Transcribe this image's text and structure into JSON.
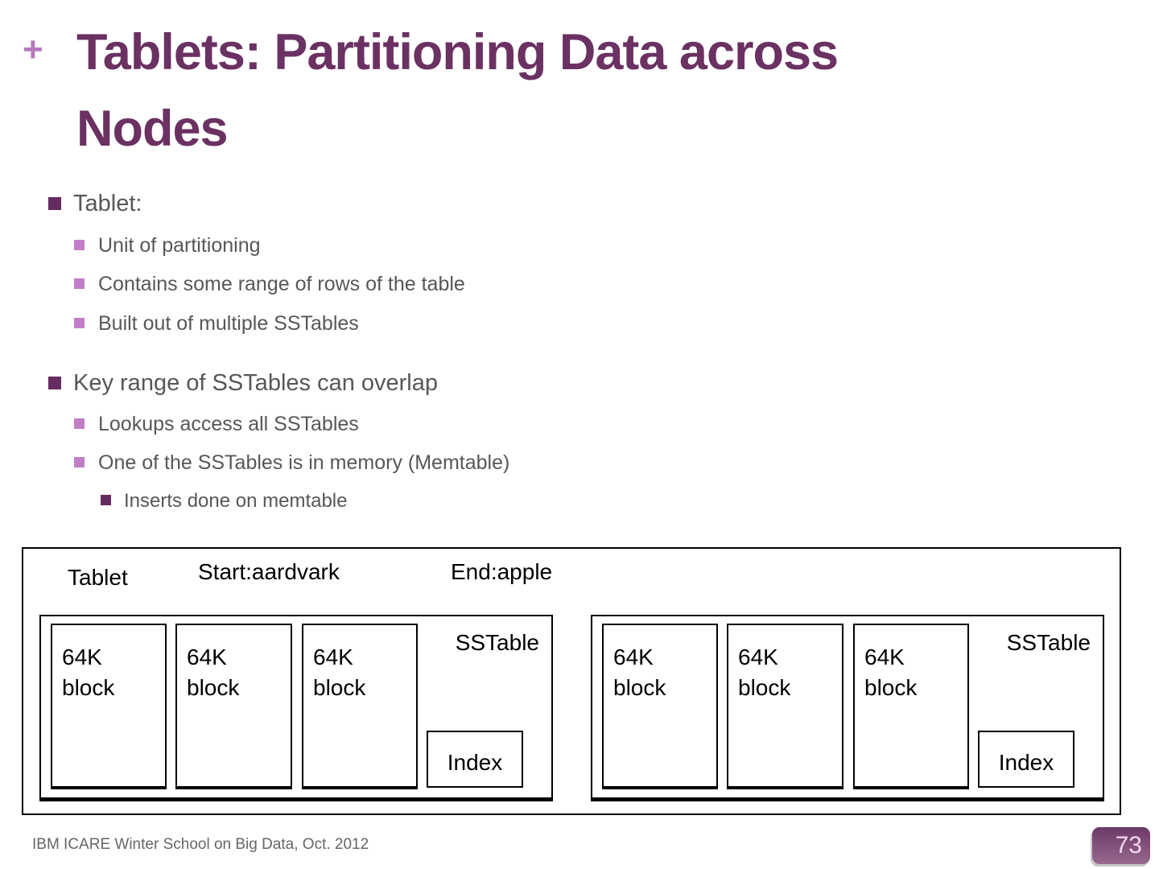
{
  "slide": {
    "title_lines": [
      "Tablets: Partitioning Data across",
      "Nodes"
    ],
    "title_marker": "+",
    "footer": "IBM ICARE Winter School on Big Data, Oct. 2012",
    "page_number": "73"
  },
  "colors": {
    "title_text": "#6A3162",
    "title_marker": "#B878BE",
    "bullet_level1": "#662C61",
    "bullet_level2": "#C17EC6",
    "body_text": "#575757",
    "footer_text": "#666666",
    "badge_gradient_top": "#6D3867",
    "badge_gradient_bottom": "#99698F",
    "badge_text": "#F2D7EE",
    "diagram_line": "#000000"
  },
  "bullets": [
    {
      "level": 1,
      "text": "Tablet:"
    },
    {
      "level": 2,
      "text": "Unit of partitioning"
    },
    {
      "level": 2,
      "text": "Contains some range of rows of the table"
    },
    {
      "level": 2,
      "text": "Built out of multiple SSTables"
    },
    {
      "level": 1,
      "text": "Key range of SSTables can overlap"
    },
    {
      "level": 2,
      "text": "Lookups access all SSTables"
    },
    {
      "level": 2,
      "text": "One of the SSTables is in memory (Memtable)"
    },
    {
      "level": 3,
      "text": "Inserts done on memtable"
    }
  ],
  "diagram": {
    "tablet_label": "Tablet",
    "start_key": "Start:aardvark",
    "end_key": "End:apple",
    "sstables": [
      {
        "label": "SSTable",
        "index_label": "Index",
        "blocks": [
          "64K block",
          "64K block",
          "64K block"
        ]
      },
      {
        "label": "SSTable",
        "index_label": "Index",
        "blocks": [
          "64K block",
          "64K block",
          "64K block"
        ]
      }
    ]
  }
}
